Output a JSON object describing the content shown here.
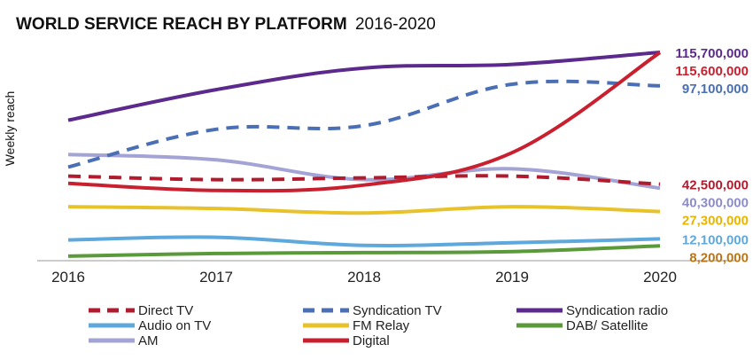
{
  "chart_data": {
    "type": "line",
    "title": "WORLD SERVICE REACH BY PLATFORM",
    "subtitle": "2016-2020",
    "xlabel": "",
    "ylabel": "Weekly reach",
    "x": [
      "2016",
      "2017",
      "2018",
      "2019",
      "2020"
    ],
    "ylim": [
      0,
      130000000
    ],
    "grid": false,
    "legend_position": "bottom",
    "series": [
      {
        "name": "Direct TV",
        "color": "#b01c2e",
        "dash": true,
        "values": [
          47000000,
          45000000,
          46000000,
          47000000,
          42500000
        ],
        "end_label": "42,500,000"
      },
      {
        "name": "Syndication TV",
        "color": "#4a6fb5",
        "dash": true,
        "values": [
          52000000,
          73000000,
          75000000,
          98000000,
          97100000
        ],
        "end_label": "97,100,000"
      },
      {
        "name": "Syndication radio",
        "color": "#5b2a8c",
        "dash": false,
        "values": [
          78000000,
          95000000,
          107000000,
          109000000,
          115700000
        ],
        "end_label": "115,700,000"
      },
      {
        "name": "Audio on TV",
        "color": "#5fa8dc",
        "dash": false,
        "values": [
          11500000,
          13000000,
          8500000,
          10000000,
          12100000
        ],
        "end_label": "12,100,000"
      },
      {
        "name": "FM Relay",
        "color": "#e8c22a",
        "dash": false,
        "values": [
          30000000,
          29000000,
          26500000,
          30000000,
          27300000
        ],
        "end_label": "27,300,000"
      },
      {
        "name": "DAB/ Satellite",
        "color": "#5a9a3a",
        "dash": false,
        "values": [
          2500000,
          4000000,
          4500000,
          5000000,
          8200000
        ],
        "end_label": "8,200,000"
      },
      {
        "name": "AM",
        "color": "#a3a3d6",
        "dash": false,
        "values": [
          59000000,
          56000000,
          45000000,
          51000000,
          40300000
        ],
        "end_label": "40,300,000"
      },
      {
        "name": "Digital",
        "color": "#c8202f",
        "dash": false,
        "values": [
          43000000,
          39000000,
          42000000,
          60000000,
          115600000
        ],
        "end_label": "115,600,000"
      }
    ]
  }
}
